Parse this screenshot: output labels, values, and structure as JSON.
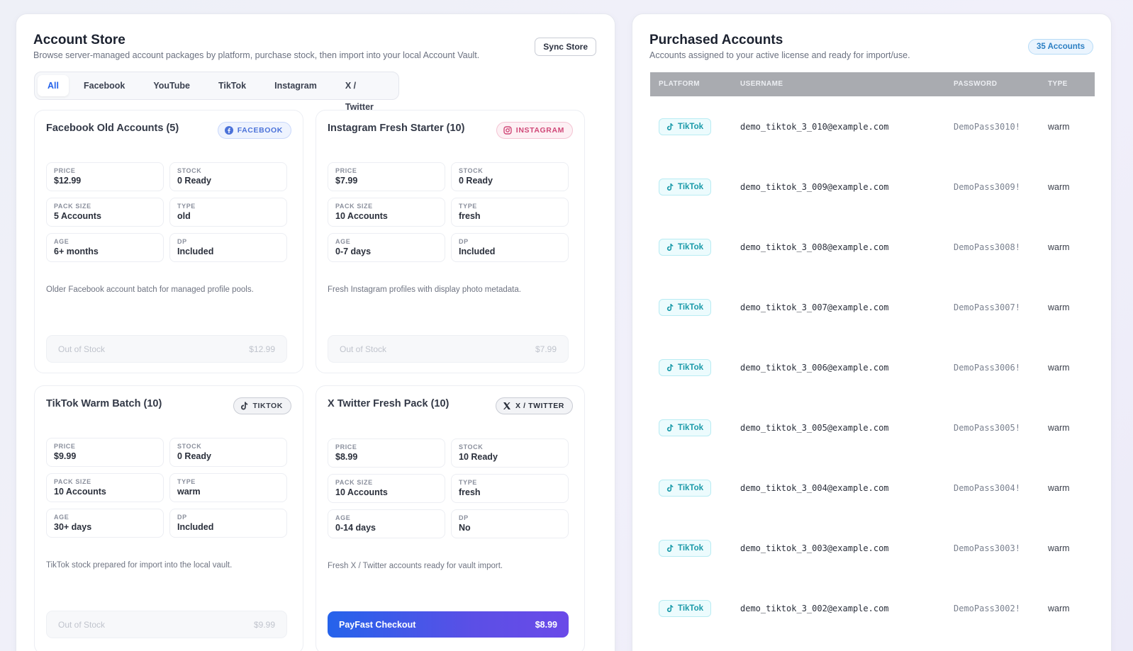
{
  "store": {
    "title": "Account Store",
    "subtitle": "Browse server-managed account packages by platform, purchase stock, then import into your local Account Vault.",
    "sync_label": "Sync Store",
    "tabs": [
      "All",
      "Facebook",
      "YouTube",
      "TikTok",
      "Instagram",
      "X / Twitter"
    ],
    "active_tab": "All",
    "labels": {
      "price": "PRICE",
      "stock": "STOCK",
      "pack_size": "PACK SIZE",
      "type": "TYPE",
      "age": "AGE",
      "dp": "DP"
    },
    "cards": [
      {
        "title": "Facebook Old Accounts (5)",
        "badge": "FACEBOOK",
        "badge_icon": "facebook-icon",
        "price": "$12.99",
        "stock": "0 Ready",
        "pack_size": "5 Accounts",
        "type": "old",
        "age": "6+ months",
        "dp": "Included",
        "description": "Older Facebook account batch for managed profile pools.",
        "action_label": "Out of Stock",
        "action_price": "$12.99"
      },
      {
        "title": "Instagram Fresh Starter (10)",
        "badge": "INSTAGRAM",
        "badge_icon": "instagram-icon",
        "price": "$7.99",
        "stock": "0 Ready",
        "pack_size": "10 Accounts",
        "type": "fresh",
        "age": "0-7 days",
        "dp": "Included",
        "description": "Fresh Instagram profiles with display photo metadata.",
        "action_label": "Out of Stock",
        "action_price": "$7.99"
      },
      {
        "title": "TikTok Warm Batch (10)",
        "badge": "TIKTOK",
        "badge_icon": "tiktok-icon",
        "price": "$9.99",
        "stock": "0 Ready",
        "pack_size": "10 Accounts",
        "type": "warm",
        "age": "30+ days",
        "dp": "Included",
        "description": "TikTok stock prepared for import into the local vault.",
        "action_label": "Out of Stock",
        "action_price": "$9.99"
      },
      {
        "title": "X Twitter Fresh Pack (10)",
        "badge": "X / TWITTER",
        "badge_icon": "x-twitter-icon",
        "price": "$8.99",
        "stock": "10 Ready",
        "pack_size": "10 Accounts",
        "type": "fresh",
        "age": "0-14 days",
        "dp": "No",
        "description": "Fresh X / Twitter accounts ready for vault import.",
        "action_label": "PayFast Checkout",
        "action_price": "$8.99"
      }
    ]
  },
  "purchased": {
    "title": "Purchased Accounts",
    "subtitle": "Accounts assigned to your active license and ready for import/use.",
    "count_badge": "35 Accounts",
    "columns": [
      "PLATFORM",
      "USERNAME",
      "PASSWORD",
      "TYPE"
    ],
    "rows": [
      {
        "platform": "TikTok",
        "username": "demo_tiktok_3_010@example.com",
        "password": "DemoPass3010!",
        "type": "warm"
      },
      {
        "platform": "TikTok",
        "username": "demo_tiktok_3_009@example.com",
        "password": "DemoPass3009!",
        "type": "warm"
      },
      {
        "platform": "TikTok",
        "username": "demo_tiktok_3_008@example.com",
        "password": "DemoPass3008!",
        "type": "warm"
      },
      {
        "platform": "TikTok",
        "username": "demo_tiktok_3_007@example.com",
        "password": "DemoPass3007!",
        "type": "warm"
      },
      {
        "platform": "TikTok",
        "username": "demo_tiktok_3_006@example.com",
        "password": "DemoPass3006!",
        "type": "warm"
      },
      {
        "platform": "TikTok",
        "username": "demo_tiktok_3_005@example.com",
        "password": "DemoPass3005!",
        "type": "warm"
      },
      {
        "platform": "TikTok",
        "username": "demo_tiktok_3_004@example.com",
        "password": "DemoPass3004!",
        "type": "warm"
      },
      {
        "platform": "TikTok",
        "username": "demo_tiktok_3_003@example.com",
        "password": "DemoPass3003!",
        "type": "warm"
      },
      {
        "platform": "TikTok",
        "username": "demo_tiktok_3_002@example.com",
        "password": "DemoPass3002!",
        "type": "warm"
      }
    ]
  }
}
